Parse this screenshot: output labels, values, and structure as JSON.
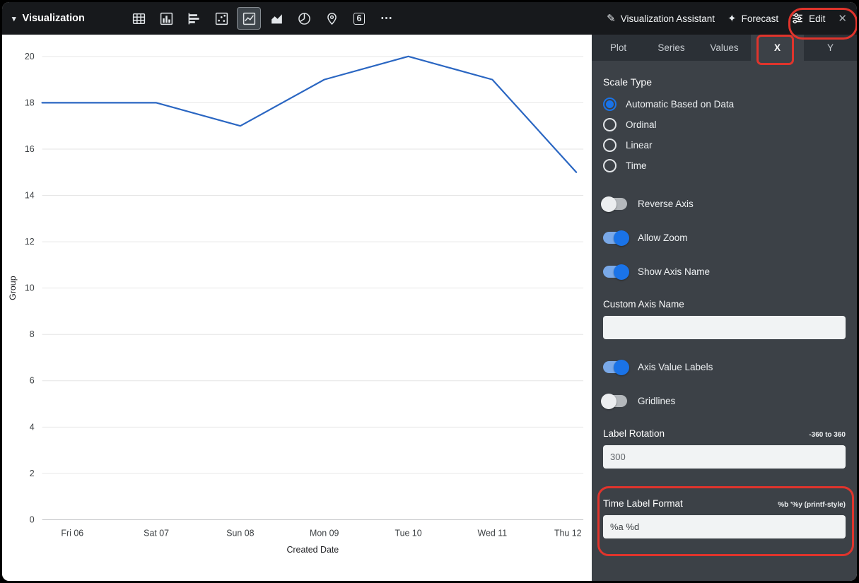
{
  "colors": {
    "accent": "#1a73e8",
    "annotation": "#e0342c",
    "topbar_bg": "#17191c",
    "panel_bg": "#3c4147"
  },
  "toolbar": {
    "title": "Visualization",
    "chart_type_icons": [
      "table-icon",
      "column-chart-icon",
      "bar-chart-icon",
      "scatter-plot-icon",
      "line-chart-icon",
      "area-chart-icon",
      "pie-chart-icon",
      "map-pin-icon",
      "single-value-icon",
      "more-options-icon"
    ],
    "selected_chart_type": "line-chart-icon",
    "single_value_glyph": "6",
    "more_glyph": "⋯",
    "assistant_label": "Visualization Assistant",
    "forecast_label": "Forecast",
    "edit_label": "Edit",
    "close_glyph": "✕",
    "caret_glyph": "▾",
    "assistant_icon_glyph": "✎",
    "forecast_icon_glyph": "✦"
  },
  "panel": {
    "tabs": [
      "Plot",
      "Series",
      "Values",
      "X",
      "Y"
    ],
    "active_tab": "X",
    "scale_type": {
      "label": "Scale Type",
      "options": [
        {
          "label": "Automatic Based on Data",
          "selected": true
        },
        {
          "label": "Ordinal",
          "selected": false
        },
        {
          "label": "Linear",
          "selected": false
        },
        {
          "label": "Time",
          "selected": false
        }
      ]
    },
    "toggles_top": [
      {
        "label": "Reverse Axis",
        "on": false
      },
      {
        "label": "Allow Zoom",
        "on": true
      },
      {
        "label": "Show Axis Name",
        "on": true
      }
    ],
    "custom_axis_name": {
      "label": "Custom Axis Name",
      "value": ""
    },
    "toggles_mid": [
      {
        "label": "Axis Value Labels",
        "on": true
      },
      {
        "label": "Gridlines",
        "on": false
      }
    ],
    "label_rotation": {
      "label": "Label Rotation",
      "hint": "-360 to 360",
      "value": "300"
    },
    "time_label_format": {
      "label": "Time Label Format",
      "hint": "%b '%y (printf-style)",
      "value": "%a %d"
    }
  },
  "chart_data": {
    "type": "line",
    "x": [
      "Fri 06",
      "Sat 07",
      "Sun 08",
      "Mon 09",
      "Tue 10",
      "Wed 11",
      "Thu 12"
    ],
    "series": [
      {
        "name": "Group",
        "values": [
          18,
          18,
          17,
          19,
          20,
          19,
          15
        ]
      }
    ],
    "title": "",
    "xlabel": "Created Date",
    "ylabel": "Group",
    "ylim": [
      0,
      20
    ],
    "ytick_step": 2,
    "grid": true,
    "legend": false,
    "line_color": "#2a66c2"
  }
}
